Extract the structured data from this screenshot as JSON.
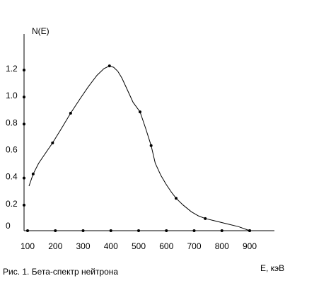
{
  "chart_data": {
    "type": "line",
    "title": "",
    "ylabel": "N(E)",
    "xlabel": "E, кэВ",
    "caption": "Рис. 1. Бета-спектр нейтрона",
    "x_ticks": [
      "100",
      "200",
      "300",
      "400",
      "500",
      "600",
      "700",
      "800",
      "900"
    ],
    "y_ticks": [
      "0",
      "0.2",
      "0.4",
      "0.6",
      "0.8",
      "1.0",
      "1.2"
    ],
    "xlim": [
      100,
      900
    ],
    "ylim": [
      0,
      1.2
    ],
    "grid": false,
    "series": [
      {
        "points": [
          {
            "x": 120,
            "y": 0.42
          },
          {
            "x": 190,
            "y": 0.65
          },
          {
            "x": 255,
            "y": 0.87
          },
          {
            "x": 395,
            "y": 1.22
          },
          {
            "x": 505,
            "y": 0.88
          },
          {
            "x": 545,
            "y": 0.63
          },
          {
            "x": 635,
            "y": 0.24
          },
          {
            "x": 740,
            "y": 0.09
          },
          {
            "x": 900,
            "y": 0.0
          }
        ],
        "curve": [
          [
            105,
            0.33
          ],
          [
            120,
            0.42
          ],
          [
            140,
            0.5
          ],
          [
            160,
            0.56
          ],
          [
            190,
            0.65
          ],
          [
            220,
            0.75
          ],
          [
            255,
            0.87
          ],
          [
            290,
            0.98
          ],
          [
            320,
            1.07
          ],
          [
            350,
            1.15
          ],
          [
            375,
            1.2
          ],
          [
            395,
            1.22
          ],
          [
            410,
            1.21
          ],
          [
            425,
            1.18
          ],
          [
            440,
            1.13
          ],
          [
            460,
            1.04
          ],
          [
            480,
            0.95
          ],
          [
            505,
            0.88
          ],
          [
            525,
            0.76
          ],
          [
            545,
            0.63
          ],
          [
            560,
            0.5
          ],
          [
            580,
            0.41
          ],
          [
            600,
            0.34
          ],
          [
            620,
            0.28
          ],
          [
            635,
            0.24
          ],
          [
            660,
            0.19
          ],
          [
            690,
            0.14
          ],
          [
            715,
            0.11
          ],
          [
            740,
            0.09
          ],
          [
            780,
            0.07
          ],
          [
            820,
            0.05
          ],
          [
            860,
            0.03
          ],
          [
            900,
            0.0
          ]
        ]
      }
    ],
    "x_axis_points": [
      100,
      200,
      300,
      400,
      500,
      600,
      700,
      800,
      900
    ],
    "y_axis_points": [
      0.2,
      0.4,
      0.8,
      1.0,
      1.2
    ],
    "color": "#000000"
  }
}
